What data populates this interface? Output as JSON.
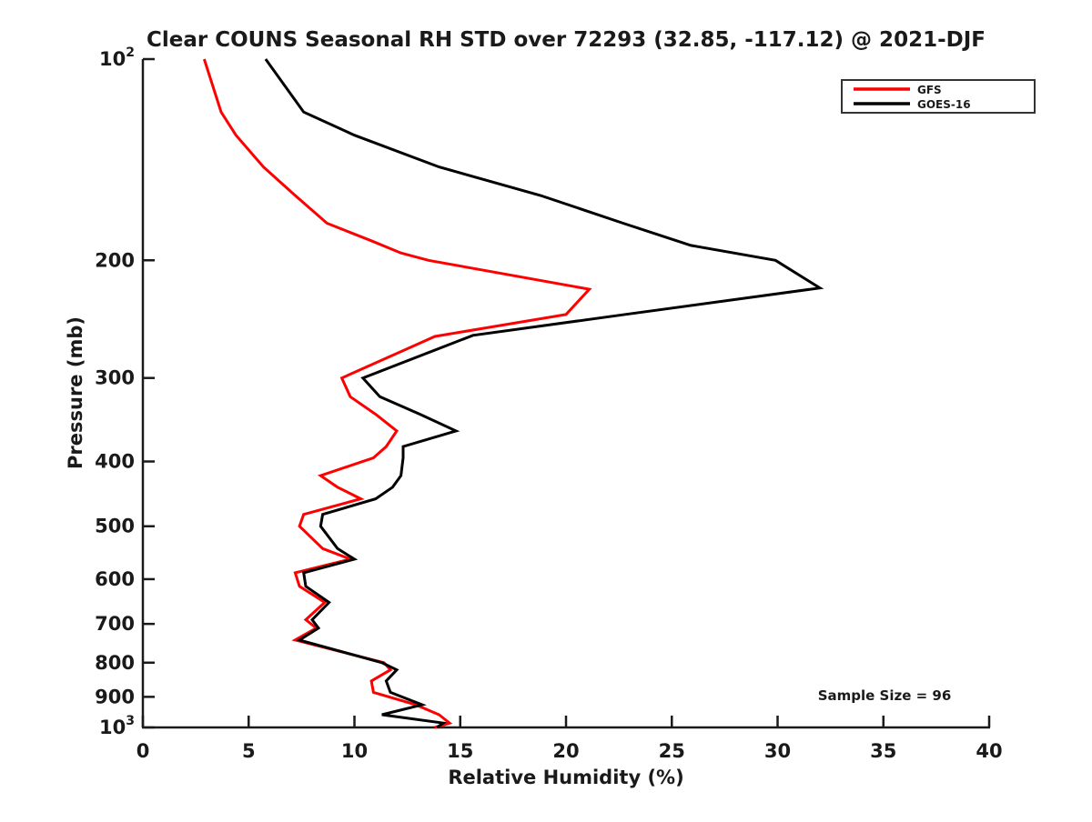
{
  "title": "Clear COUNS Seasonal RH STD over 72293 (32.85, -117.12) @ 2021-DJF",
  "axes": {
    "x": {
      "label": "Relative Humidity (%)",
      "min": 0,
      "max": 40,
      "ticks": [
        0,
        5,
        10,
        15,
        20,
        25,
        30,
        35,
        40
      ]
    },
    "y": {
      "label": "Pressure (mb)",
      "scale": "log",
      "min": 100,
      "max": 1000,
      "ticks": [
        {
          "v": 100,
          "label": "10^2"
        },
        {
          "v": 200,
          "label": "200"
        },
        {
          "v": 300,
          "label": "300"
        },
        {
          "v": 400,
          "label": "400"
        },
        {
          "v": 500,
          "label": "500"
        },
        {
          "v": 600,
          "label": "600"
        },
        {
          "v": 700,
          "label": "700"
        },
        {
          "v": 800,
          "label": "800"
        },
        {
          "v": 900,
          "label": "900"
        },
        {
          "v": 1000,
          "label": "10^3"
        }
      ]
    }
  },
  "legend": {
    "items": [
      {
        "label": "GFS",
        "color": "#ff0000"
      },
      {
        "label": "GOES-16",
        "color": "#000000"
      }
    ]
  },
  "annotations": {
    "sample_size": "Sample Size = 96"
  },
  "chart_data": {
    "type": "line",
    "title": "Clear COUNS Seasonal RH STD over 72293 (32.85, -117.12) @ 2021-DJF",
    "xlabel": "Relative Humidity (%)",
    "ylabel": "Pressure (mb)",
    "x_range": [
      0,
      40
    ],
    "y_range": [
      100,
      1000
    ],
    "y_scale": "log",
    "y_direction": "increasing-downward",
    "grid": false,
    "legend_position": "top-right",
    "sample_size": 96,
    "series": [
      {
        "name": "GFS",
        "color": "#ff0000",
        "points_pressure_rh": [
          [
            100,
            2.9
          ],
          [
            120,
            3.7
          ],
          [
            130,
            4.4
          ],
          [
            145,
            5.7
          ],
          [
            160,
            7.2
          ],
          [
            176,
            8.7
          ],
          [
            187,
            10.8
          ],
          [
            195,
            12.2
          ],
          [
            200,
            13.5
          ],
          [
            221,
            21.1
          ],
          [
            241,
            20.0
          ],
          [
            260,
            13.8
          ],
          [
            300,
            9.4
          ],
          [
            320,
            9.8
          ],
          [
            340,
            11.0
          ],
          [
            360,
            12.0
          ],
          [
            380,
            11.5
          ],
          [
            395,
            10.9
          ],
          [
            420,
            8.4
          ],
          [
            437,
            9.2
          ],
          [
            455,
            10.3
          ],
          [
            480,
            7.6
          ],
          [
            500,
            7.4
          ],
          [
            540,
            8.5
          ],
          [
            560,
            9.8
          ],
          [
            587,
            7.2
          ],
          [
            615,
            7.4
          ],
          [
            650,
            8.6
          ],
          [
            690,
            7.7
          ],
          [
            710,
            8.2
          ],
          [
            740,
            7.2
          ],
          [
            800,
            11.4
          ],
          [
            820,
            11.7
          ],
          [
            852,
            10.8
          ],
          [
            886,
            10.9
          ],
          [
            925,
            12.9
          ],
          [
            957,
            14.0
          ],
          [
            985,
            14.5
          ],
          [
            1000,
            13.8
          ]
        ]
      },
      {
        "name": "GOES-16",
        "color": "#000000",
        "points_pressure_rh": [
          [
            100,
            5.8
          ],
          [
            120,
            7.6
          ],
          [
            130,
            10.0
          ],
          [
            145,
            14.0
          ],
          [
            160,
            18.8
          ],
          [
            176,
            22.7
          ],
          [
            190,
            25.9
          ],
          [
            200,
            29.9
          ],
          [
            220,
            32.0
          ],
          [
            241,
            22.8
          ],
          [
            259,
            15.6
          ],
          [
            300,
            10.4
          ],
          [
            320,
            11.2
          ],
          [
            340,
            13.1
          ],
          [
            360,
            14.8
          ],
          [
            380,
            12.3
          ],
          [
            395,
            12.3
          ],
          [
            420,
            12.2
          ],
          [
            437,
            11.8
          ],
          [
            455,
            11.0
          ],
          [
            480,
            8.5
          ],
          [
            500,
            8.4
          ],
          [
            540,
            9.2
          ],
          [
            560,
            10.0
          ],
          [
            587,
            7.6
          ],
          [
            615,
            7.7
          ],
          [
            650,
            8.8
          ],
          [
            690,
            8.0
          ],
          [
            710,
            8.3
          ],
          [
            740,
            7.4
          ],
          [
            800,
            11.3
          ],
          [
            820,
            12.0
          ],
          [
            852,
            11.5
          ],
          [
            886,
            11.7
          ],
          [
            925,
            13.2
          ],
          [
            957,
            11.3
          ],
          [
            985,
            14.2
          ],
          [
            1000,
            13.9
          ]
        ]
      }
    ]
  }
}
